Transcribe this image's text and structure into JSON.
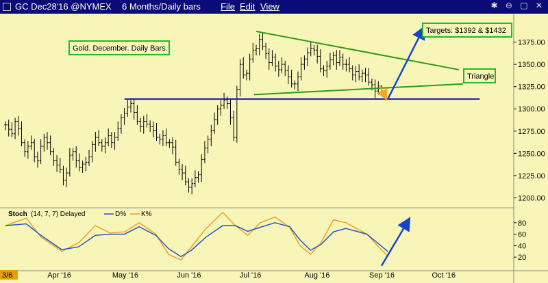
{
  "window": {
    "title": "GC Dec28'16 @NYMEX",
    "timeframe": "6 Months/Daily bars",
    "menus": [
      "File",
      "Edit",
      "View"
    ],
    "controls": "✱ ⊖ ▢ ✕"
  },
  "chart_data": {
    "type": "ohlc",
    "instrument": "GC Dec28'16 @NYMEX",
    "price_axis": {
      "ylim": [
        1195,
        1400
      ],
      "ticks": [
        1200,
        1225,
        1250,
        1275,
        1300,
        1325,
        1350,
        1375
      ]
    },
    "time_axis": {
      "labels": [
        "3/6",
        "Apr '16",
        "May '16",
        "Jun '16",
        "Jul '16",
        "Aug '16",
        "Sep '16",
        "Oct '16"
      ],
      "label_days": [
        0,
        26,
        57,
        88,
        118,
        149,
        180,
        210
      ],
      "total_days": 230
    },
    "closes": [
      1282,
      1277,
      1272,
      1286,
      1278,
      1262,
      1252,
      1258,
      1262,
      1246,
      1242,
      1258,
      1268,
      1262,
      1252,
      1242,
      1237,
      1232,
      1220,
      1228,
      1248,
      1252,
      1242,
      1234,
      1238,
      1240,
      1246,
      1260,
      1268,
      1262,
      1258,
      1262,
      1270,
      1262,
      1268,
      1278,
      1290,
      1295,
      1302,
      1306,
      1296,
      1286,
      1280,
      1286,
      1283,
      1280,
      1276,
      1268,
      1266,
      1270,
      1262,
      1262,
      1257,
      1240,
      1232,
      1228,
      1218,
      1212,
      1216,
      1223,
      1226,
      1243,
      1256,
      1266,
      1276,
      1288,
      1300,
      1304,
      1310,
      1306,
      1290,
      1268,
      1322,
      1350,
      1338,
      1340,
      1356,
      1366,
      1368,
      1378,
      1370,
      1362,
      1352,
      1358,
      1348,
      1344,
      1350,
      1343,
      1336,
      1328,
      1328,
      1336,
      1350,
      1356,
      1363,
      1368,
      1366,
      1359,
      1345,
      1343,
      1348,
      1355,
      1360,
      1352,
      1358,
      1350,
      1350,
      1345,
      1338,
      1342,
      1336,
      1340,
      1338,
      1330,
      1327,
      1320,
      1323,
      1320
    ],
    "triangle": {
      "upper": [
        {
          "day": 120,
          "price": 1387
        },
        {
          "day": 217,
          "price": 1344
        }
      ],
      "lower": [
        {
          "day": 119,
          "price": 1316
        },
        {
          "day": 219,
          "price": 1328
        }
      ]
    },
    "neckline": [
      {
        "day": 57,
        "price": 1311
      },
      {
        "day": 227,
        "price": 1311
      }
    ],
    "projection_arrow": [
      {
        "day": 183,
        "price": 1311
      },
      {
        "day": 200,
        "price": 1390
      }
    ],
    "breakdown_arrow": [
      {
        "day": 179,
        "price": 1327
      },
      {
        "day": 182,
        "price": 1312
      }
    ],
    "annotations": [
      {
        "id": "gold",
        "text": "Gold. December. Daily Bars."
      },
      {
        "id": "targets",
        "text": "Targets:  $1392 & $1432"
      },
      {
        "id": "triangle",
        "text": "Triangle"
      }
    ],
    "colors": {
      "background": "#f8f5b8",
      "bars": "#000000",
      "triangle": "#2e9b10",
      "neckline": "#1515c8",
      "arrow_up": "#1545cc",
      "arrow_down": "#f5a623",
      "d_line": "#2255cc",
      "k_line": "#f0a020"
    },
    "stochastic": {
      "label": "Stoch",
      "params": "(14, 7, 7) Delayed",
      "d_label": "D%",
      "k_label": "K%",
      "ylim": [
        0,
        100
      ],
      "ticks": [
        20,
        40,
        60,
        80
      ],
      "k_points": [
        {
          "day": 0,
          "v": 75
        },
        {
          "day": 10,
          "v": 88
        },
        {
          "day": 17,
          "v": 55
        },
        {
          "day": 27,
          "v": 30
        },
        {
          "day": 35,
          "v": 45
        },
        {
          "day": 43,
          "v": 75
        },
        {
          "day": 50,
          "v": 62
        },
        {
          "day": 57,
          "v": 64
        },
        {
          "day": 64,
          "v": 80
        },
        {
          "day": 72,
          "v": 60
        },
        {
          "day": 78,
          "v": 25
        },
        {
          "day": 84,
          "v": 15
        },
        {
          "day": 89,
          "v": 38
        },
        {
          "day": 96,
          "v": 70
        },
        {
          "day": 104,
          "v": 98
        },
        {
          "day": 110,
          "v": 75
        },
        {
          "day": 116,
          "v": 58
        },
        {
          "day": 122,
          "v": 80
        },
        {
          "day": 129,
          "v": 90
        },
        {
          "day": 136,
          "v": 72
        },
        {
          "day": 141,
          "v": 40
        },
        {
          "day": 146,
          "v": 25
        },
        {
          "day": 151,
          "v": 45
        },
        {
          "day": 157,
          "v": 85
        },
        {
          "day": 163,
          "v": 80
        },
        {
          "day": 168,
          "v": 70
        },
        {
          "day": 173,
          "v": 60
        },
        {
          "day": 178,
          "v": 40
        },
        {
          "day": 183,
          "v": 22
        }
      ],
      "d_points": [
        {
          "day": 0,
          "v": 75
        },
        {
          "day": 10,
          "v": 78
        },
        {
          "day": 17,
          "v": 58
        },
        {
          "day": 27,
          "v": 33
        },
        {
          "day": 35,
          "v": 38
        },
        {
          "day": 43,
          "v": 58
        },
        {
          "day": 50,
          "v": 60
        },
        {
          "day": 57,
          "v": 60
        },
        {
          "day": 64,
          "v": 73
        },
        {
          "day": 72,
          "v": 58
        },
        {
          "day": 78,
          "v": 35
        },
        {
          "day": 84,
          "v": 21
        },
        {
          "day": 89,
          "v": 32
        },
        {
          "day": 96,
          "v": 55
        },
        {
          "day": 104,
          "v": 75
        },
        {
          "day": 110,
          "v": 75
        },
        {
          "day": 116,
          "v": 65
        },
        {
          "day": 122,
          "v": 72
        },
        {
          "day": 129,
          "v": 80
        },
        {
          "day": 136,
          "v": 73
        },
        {
          "day": 141,
          "v": 50
        },
        {
          "day": 146,
          "v": 32
        },
        {
          "day": 151,
          "v": 42
        },
        {
          "day": 157,
          "v": 64
        },
        {
          "day": 163,
          "v": 70
        },
        {
          "day": 168,
          "v": 65
        },
        {
          "day": 173,
          "v": 60
        },
        {
          "day": 178,
          "v": 45
        },
        {
          "day": 183,
          "v": 30
        }
      ],
      "arrow": [
        {
          "day": 180,
          "v": 5
        },
        {
          "day": 193,
          "v": 85
        }
      ]
    }
  }
}
